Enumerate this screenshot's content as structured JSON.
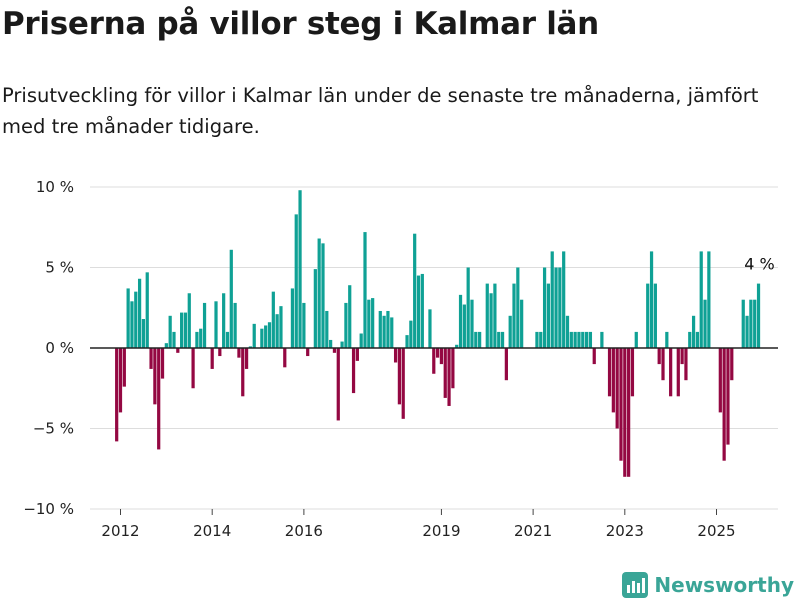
{
  "chart_data": {
    "type": "bar",
    "title": "Priserna på villor steg i Kalmar län",
    "subtitle": "Prisutveckling för villor i Kalmar län under de senaste tre månaderna, jämfört med tre månader tidigare.",
    "ylim": [
      -10,
      10
    ],
    "y_ticks": [
      10,
      5,
      0,
      -5,
      -10
    ],
    "y_tick_labels": [
      "10 %",
      "5 %",
      "0 %",
      "−5 %",
      "−10 %"
    ],
    "x_ticks": [
      "2012",
      "2014",
      "2016",
      "2019",
      "2021",
      "2023",
      "2025"
    ],
    "x_tick_dates": [
      "2012-01",
      "2014-01",
      "2016-01",
      "2019-01",
      "2021-01",
      "2023-01",
      "2025-01"
    ],
    "start_month": "2011-12",
    "grid": true,
    "positive_color": "#0fa195",
    "negative_color": "#940842",
    "annotation": "4 %",
    "values": [
      -5.8,
      -4.0,
      -2.4,
      3.7,
      2.9,
      3.5,
      4.3,
      1.8,
      4.7,
      -1.3,
      -3.5,
      -6.3,
      -1.9,
      0.3,
      2.0,
      1.0,
      -0.3,
      2.2,
      2.2,
      3.4,
      -2.5,
      1.0,
      1.2,
      2.8,
      0.0,
      -1.3,
      2.9,
      -0.5,
      3.4,
      1.0,
      6.1,
      2.8,
      -0.6,
      -3.0,
      -1.3,
      0.1,
      1.5,
      0.0,
      1.2,
      1.4,
      1.6,
      3.5,
      2.1,
      2.6,
      -1.2,
      0.0,
      3.7,
      8.3,
      9.8,
      2.8,
      -0.5,
      0.0,
      4.9,
      6.8,
      6.5,
      2.3,
      0.5,
      -0.3,
      -4.5,
      0.4,
      2.8,
      3.9,
      -2.8,
      -0.8,
      0.9,
      7.2,
      3.0,
      3.1,
      0.0,
      2.3,
      2.0,
      2.3,
      1.9,
      -0.9,
      -3.5,
      -4.4,
      0.8,
      1.7,
      7.1,
      4.5,
      4.6,
      0.0,
      2.4,
      -1.6,
      -0.6,
      -1.0,
      -3.1,
      -3.6,
      -2.5,
      0.2,
      3.3,
      2.7,
      5.0,
      3.0,
      1.0,
      1.0,
      0.0,
      4.0,
      3.4,
      4.0,
      1.0,
      1.0,
      -2.0,
      2.0,
      4.0,
      5.0,
      3.0,
      0.0,
      0.0,
      0.0,
      1.0,
      1.0,
      5.0,
      4.0,
      6.0,
      5.0,
      5.0,
      6.0,
      2.0,
      1.0,
      1.0,
      1.0,
      1.0,
      1.0,
      1.0,
      -1.0,
      0.0,
      1.0,
      0.0,
      -3.0,
      -4.0,
      -5.0,
      -7.0,
      -8.0,
      -8.0,
      -3.0,
      1.0,
      0.0,
      0.0,
      4.0,
      6.0,
      4.0,
      -1.0,
      -2.0,
      1.0,
      -3.0,
      0.0,
      -3.0,
      -1.0,
      -2.0,
      1.0,
      2.0,
      1.0,
      6.0,
      3.0,
      6.0,
      0.0,
      0.0,
      -4.0,
      -7.0,
      -6.0,
      -2.0,
      0.0,
      0.0,
      3.0,
      2.0,
      3.0,
      3.0,
      4.0
    ]
  },
  "logo": {
    "text": "Newsworthy"
  }
}
